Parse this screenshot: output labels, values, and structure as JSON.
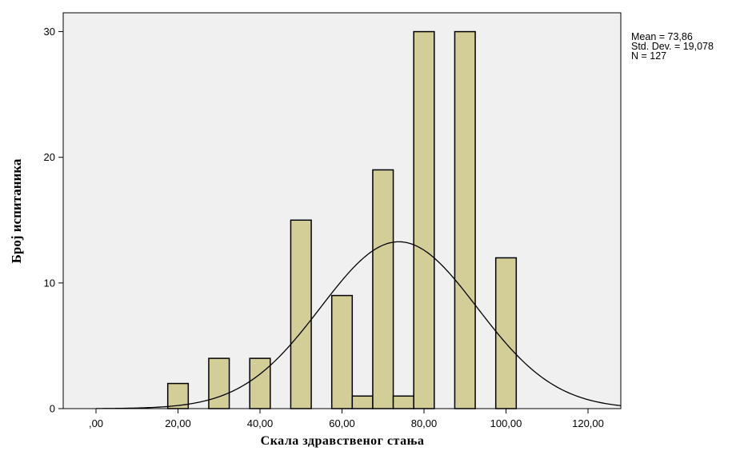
{
  "chart_data": {
    "type": "bar",
    "subtype": "histogram",
    "xlabel": "Скала здравственог стања",
    "ylabel": "Број испитаника",
    "xlim": [
      -8,
      128
    ],
    "ylim": [
      0,
      31.5
    ],
    "x_ticks": [
      0,
      20,
      40,
      60,
      80,
      100,
      120
    ],
    "x_tick_labels": [
      ",00",
      "20,00",
      "40,00",
      "60,00",
      "80,00",
      "100,00",
      "120,00"
    ],
    "y_ticks": [
      0,
      10,
      20,
      30
    ],
    "y_tick_labels": [
      "0",
      "10",
      "20",
      "30"
    ],
    "bin_width": 5,
    "bins": [
      {
        "center": 20,
        "count": 2
      },
      {
        "center": 30,
        "count": 4
      },
      {
        "center": 40,
        "count": 4
      },
      {
        "center": 50,
        "count": 15
      },
      {
        "center": 60,
        "count": 9
      },
      {
        "center": 65,
        "count": 1
      },
      {
        "center": 70,
        "count": 19
      },
      {
        "center": 75,
        "count": 1
      },
      {
        "center": 80,
        "count": 30
      },
      {
        "center": 90,
        "count": 30
      },
      {
        "center": 100,
        "count": 12
      }
    ],
    "normal_curve": {
      "mean": 73.86,
      "sd": 19.078,
      "n": 127
    },
    "stats_lines": [
      "Mean = 73,86",
      "Std. Dev. = 19,078",
      "N = 127"
    ],
    "grid": false,
    "plot_background": "#f0f0f0",
    "bar_fill": "#d3ce97",
    "bar_stroke": "#000000",
    "curve_color": "#000000"
  }
}
